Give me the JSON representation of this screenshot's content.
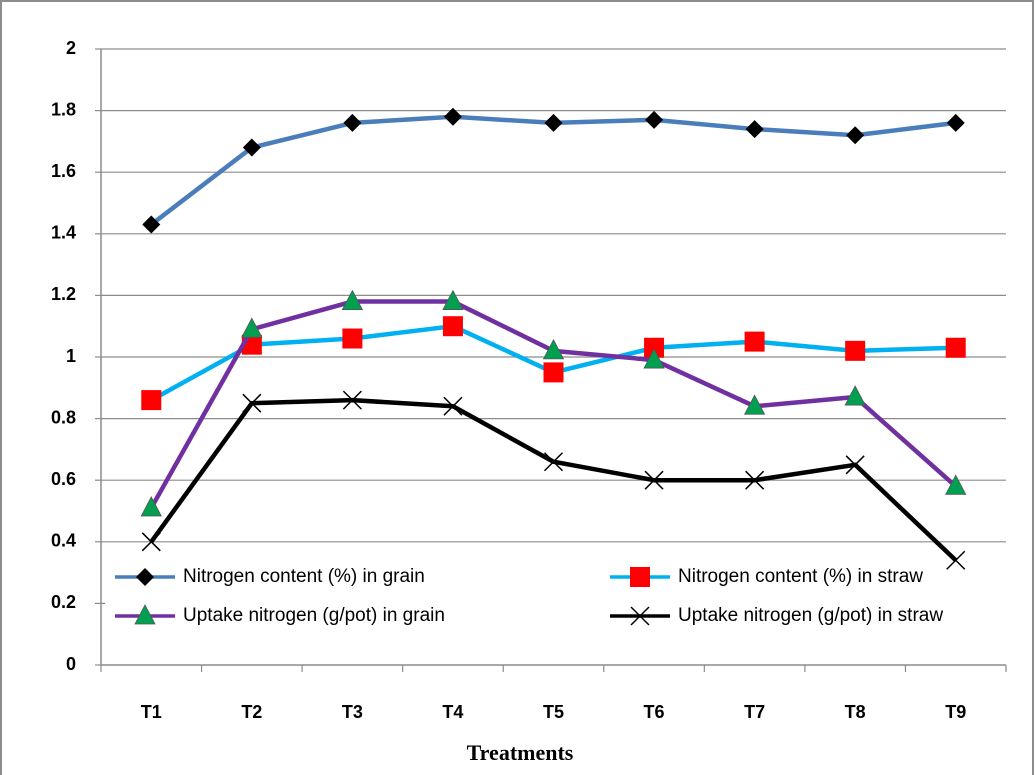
{
  "chart_data": {
    "type": "line",
    "x_label": "Treatments",
    "categories": [
      "T1",
      "T2",
      "T3",
      "T4",
      "T5",
      "T6",
      "T7",
      "T8",
      "T9"
    ],
    "series": [
      {
        "name": "Nitrogen content (%) in grain",
        "color": "#4a7ebb",
        "marker": "diamond",
        "marker_color": "#000000",
        "values": [
          1.43,
          1.68,
          1.76,
          1.78,
          1.76,
          1.77,
          1.74,
          1.72,
          1.76
        ]
      },
      {
        "name": "Nitrogen content (%) in straw",
        "color": "#00b0f0",
        "marker": "square",
        "marker_color": "#ff0000",
        "values": [
          0.86,
          1.04,
          1.06,
          1.1,
          0.95,
          1.03,
          1.05,
          1.02,
          1.03
        ]
      },
      {
        "name": "Uptake nitrogen (g/pot) in grain",
        "color": "#7030a0",
        "marker": "triangle",
        "marker_color": "#00a050",
        "values": [
          0.51,
          1.09,
          1.18,
          1.18,
          1.02,
          0.99,
          0.84,
          0.87,
          0.58
        ]
      },
      {
        "name": "Uptake nitrogen (g/pot) in straw",
        "color": "#000000",
        "marker": "x",
        "marker_color": "#000000",
        "values": [
          0.4,
          0.85,
          0.86,
          0.84,
          0.66,
          0.6,
          0.6,
          0.65,
          0.34
        ]
      }
    ],
    "ylim": [
      0,
      2
    ],
    "yticks": [
      0,
      0.2,
      0.4,
      0.6,
      0.8,
      1,
      1.2,
      1.4,
      1.6,
      1.8,
      2
    ],
    "grid": true,
    "legend": "bottom"
  }
}
